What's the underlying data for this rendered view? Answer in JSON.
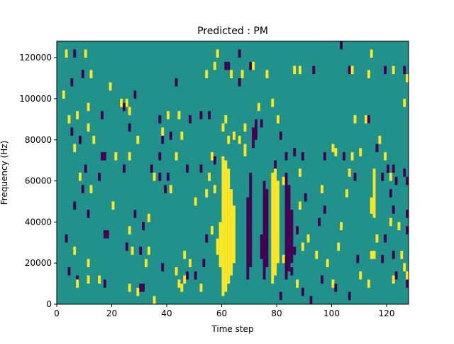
{
  "chart_data": {
    "type": "heatmap",
    "title": "Predicted : PM",
    "xlabel": "Time step",
    "ylabel": "Frequency (Hz)",
    "xlim": [
      0,
      128
    ],
    "ylim": [
      0,
      128000
    ],
    "x_ticks": [
      0,
      20,
      40,
      60,
      80,
      100,
      120
    ],
    "x_tick_labels": [
      "0",
      "20",
      "40",
      "60",
      "80",
      "100",
      "120"
    ],
    "y_ticks": [
      0,
      20000,
      40000,
      60000,
      80000,
      100000,
      120000
    ],
    "y_tick_labels": [
      "0",
      "20000",
      "40000",
      "60000",
      "80000",
      "100000",
      "120000"
    ],
    "grid": false,
    "colors": {
      "background": "#21918c",
      "high": "#fde725",
      "low": "#440154"
    },
    "segments": [
      {
        "x": 60,
        "y0": 4000,
        "y1": 72000,
        "v": 1
      },
      {
        "x": 61,
        "y0": 6000,
        "y1": 70000,
        "v": 1
      },
      {
        "x": 62,
        "y0": 10000,
        "y1": 66000,
        "v": 1
      },
      {
        "x": 63,
        "y0": 14000,
        "y1": 56000,
        "v": 1
      },
      {
        "x": 64,
        "y0": 20000,
        "y1": 48000,
        "v": 1
      },
      {
        "x": 59,
        "y0": 18000,
        "y1": 40000,
        "v": 1
      },
      {
        "x": 58,
        "y0": 24000,
        "y1": 32000,
        "v": 1
      },
      {
        "x": 69,
        "y0": 12000,
        "y1": 52000,
        "v": -1
      },
      {
        "x": 70,
        "y0": 18000,
        "y1": 64000,
        "v": -1
      },
      {
        "x": 74,
        "y0": 22000,
        "y1": 34000,
        "v": -1
      },
      {
        "x": 75,
        "y0": 12000,
        "y1": 60000,
        "v": -1
      },
      {
        "x": 76,
        "y0": 18000,
        "y1": 56000,
        "v": -1
      },
      {
        "x": 78,
        "y0": 10000,
        "y1": 64000,
        "v": 1
      },
      {
        "x": 79,
        "y0": 14000,
        "y1": 66000,
        "v": 1
      },
      {
        "x": 80,
        "y0": 20000,
        "y1": 60000,
        "v": 1
      },
      {
        "x": 83,
        "y0": 12000,
        "y1": 64000,
        "v": -1
      },
      {
        "x": 84,
        "y0": 16000,
        "y1": 58000,
        "v": -1
      },
      {
        "x": 85,
        "y0": 20000,
        "y1": 46000,
        "v": -1
      },
      {
        "x": 71,
        "y0": 76000,
        "y1": 86000,
        "v": -1
      },
      {
        "x": 72,
        "y0": 80000,
        "y1": 90000,
        "v": -1
      },
      {
        "x": 68,
        "y0": 72000,
        "y1": 78000,
        "v": 1
      },
      {
        "x": 114,
        "y0": 44000,
        "y1": 52000,
        "v": 1
      },
      {
        "x": 115,
        "y0": 42000,
        "y1": 66000,
        "v": 1
      }
    ],
    "cells": [
      {
        "x": 3,
        "y": 122000,
        "v": 1
      },
      {
        "x": 6,
        "y": 122000,
        "v": -1
      },
      {
        "x": 10,
        "y": 122000,
        "v": 1
      },
      {
        "x": 5,
        "y": 108000,
        "v": -1
      },
      {
        "x": 9,
        "y": 112000,
        "v": -1
      },
      {
        "x": 12,
        "y": 112000,
        "v": 1
      },
      {
        "x": 2,
        "y": 102000,
        "v": 1
      },
      {
        "x": 11,
        "y": 96000,
        "v": 1
      },
      {
        "x": 19,
        "y": 106000,
        "v": 1
      },
      {
        "x": 4,
        "y": 90000,
        "v": 1
      },
      {
        "x": 7,
        "y": 92000,
        "v": 1
      },
      {
        "x": 5,
        "y": 84000,
        "v": -1
      },
      {
        "x": 8,
        "y": 80000,
        "v": -1
      },
      {
        "x": 11,
        "y": 86000,
        "v": 1
      },
      {
        "x": 16,
        "y": 92000,
        "v": -1
      },
      {
        "x": 13,
        "y": 80000,
        "v": 1
      },
      {
        "x": 6,
        "y": 76000,
        "v": 1
      },
      {
        "x": 17,
        "y": 72000,
        "v": -1
      },
      {
        "x": 16,
        "y": 72000,
        "v": -1
      },
      {
        "x": 21,
        "y": 72000,
        "v": 1
      },
      {
        "x": 26,
        "y": 72000,
        "v": 1
      },
      {
        "x": 8,
        "y": 62000,
        "v": 1
      },
      {
        "x": 10,
        "y": 66000,
        "v": -1
      },
      {
        "x": 15,
        "y": 62000,
        "v": -1
      },
      {
        "x": 12,
        "y": 56000,
        "v": 1
      },
      {
        "x": 9,
        "y": 56000,
        "v": -1
      },
      {
        "x": 6,
        "y": 48000,
        "v": -1
      },
      {
        "x": 11,
        "y": 44000,
        "v": -1
      },
      {
        "x": 17,
        "y": 34000,
        "v": -1
      },
      {
        "x": 18,
        "y": 34000,
        "v": -1
      },
      {
        "x": 20,
        "y": 48000,
        "v": 1
      },
      {
        "x": 3,
        "y": 32000,
        "v": -1
      },
      {
        "x": 6,
        "y": 26000,
        "v": 1
      },
      {
        "x": 11,
        "y": 20000,
        "v": 1
      },
      {
        "x": 4,
        "y": 16000,
        "v": -1
      },
      {
        "x": 7,
        "y": 12000,
        "v": -1
      },
      {
        "x": 7,
        "y": 10000,
        "v": 1
      },
      {
        "x": 11,
        "y": 12000,
        "v": 1
      },
      {
        "x": 15,
        "y": 12000,
        "v": 1
      },
      {
        "x": 17,
        "y": 10000,
        "v": -1
      },
      {
        "x": 26,
        "y": 8000,
        "v": 1
      },
      {
        "x": 30,
        "y": 8000,
        "v": -1
      },
      {
        "x": 31,
        "y": 8000,
        "v": -1
      },
      {
        "x": 29,
        "y": 6000,
        "v": 1
      },
      {
        "x": 35,
        "y": 2000,
        "v": 1
      },
      {
        "x": 23,
        "y": 98000,
        "v": 1
      },
      {
        "x": 25,
        "y": 98000,
        "v": 1
      },
      {
        "x": 28,
        "y": 102000,
        "v": -1
      },
      {
        "x": 24,
        "y": 96000,
        "v": -1
      },
      {
        "x": 26,
        "y": 94000,
        "v": 1
      },
      {
        "x": 26,
        "y": 86000,
        "v": -1
      },
      {
        "x": 29,
        "y": 80000,
        "v": 1
      },
      {
        "x": 37,
        "y": 90000,
        "v": -1
      },
      {
        "x": 40,
        "y": 92000,
        "v": 1
      },
      {
        "x": 38,
        "y": 84000,
        "v": 1
      },
      {
        "x": 38,
        "y": 80000,
        "v": -1
      },
      {
        "x": 41,
        "y": 82000,
        "v": -1
      },
      {
        "x": 37,
        "y": 72000,
        "v": -1
      },
      {
        "x": 43,
        "y": 72000,
        "v": 1
      },
      {
        "x": 34,
        "y": 66000,
        "v": -1
      },
      {
        "x": 40,
        "y": 62000,
        "v": -1
      },
      {
        "x": 35,
        "y": 62000,
        "v": 1
      },
      {
        "x": 39,
        "y": 56000,
        "v": -1
      },
      {
        "x": 41,
        "y": 56000,
        "v": 1
      },
      {
        "x": 28,
        "y": 44000,
        "v": -1
      },
      {
        "x": 33,
        "y": 42000,
        "v": 1
      },
      {
        "x": 31,
        "y": 38000,
        "v": -1
      },
      {
        "x": 26,
        "y": 36000,
        "v": 1
      },
      {
        "x": 25,
        "y": 28000,
        "v": -1
      },
      {
        "x": 27,
        "y": 26000,
        "v": 1
      },
      {
        "x": 30,
        "y": 26000,
        "v": -1
      },
      {
        "x": 33,
        "y": 26000,
        "v": 1
      },
      {
        "x": 32,
        "y": 20000,
        "v": 1
      },
      {
        "x": 38,
        "y": 18000,
        "v": -1
      },
      {
        "x": 43,
        "y": 16000,
        "v": 1
      },
      {
        "x": 44,
        "y": 10000,
        "v": 1
      },
      {
        "x": 45,
        "y": 8000,
        "v": 1
      },
      {
        "x": 46,
        "y": 12000,
        "v": 1
      },
      {
        "x": 47,
        "y": 14000,
        "v": -1
      },
      {
        "x": 46,
        "y": 24000,
        "v": 1
      },
      {
        "x": 48,
        "y": 20000,
        "v": 1
      },
      {
        "x": 50,
        "y": 14000,
        "v": -1
      },
      {
        "x": 52,
        "y": 8000,
        "v": 1
      },
      {
        "x": 53,
        "y": 20000,
        "v": -1
      },
      {
        "x": 50,
        "y": 50000,
        "v": 1
      },
      {
        "x": 52,
        "y": 66000,
        "v": -1
      },
      {
        "x": 54,
        "y": 54000,
        "v": 1
      },
      {
        "x": 55,
        "y": 62000,
        "v": 1
      },
      {
        "x": 56,
        "y": 72000,
        "v": 1
      },
      {
        "x": 57,
        "y": 70000,
        "v": -1
      },
      {
        "x": 57,
        "y": 56000,
        "v": 1
      },
      {
        "x": 56,
        "y": 36000,
        "v": 1
      },
      {
        "x": 54,
        "y": 32000,
        "v": -1
      },
      {
        "x": 47,
        "y": 66000,
        "v": -1
      },
      {
        "x": 45,
        "y": 82000,
        "v": 1
      },
      {
        "x": 48,
        "y": 90000,
        "v": -1
      },
      {
        "x": 44,
        "y": 92000,
        "v": 1
      },
      {
        "x": 43,
        "y": 108000,
        "v": -1
      },
      {
        "x": 52,
        "y": 92000,
        "v": -1
      },
      {
        "x": 55,
        "y": 92000,
        "v": -1
      },
      {
        "x": 54,
        "y": 112000,
        "v": 1
      },
      {
        "x": 57,
        "y": 116000,
        "v": 1
      },
      {
        "x": 58,
        "y": 122000,
        "v": 1
      },
      {
        "x": 61,
        "y": 116000,
        "v": -1
      },
      {
        "x": 62,
        "y": 116000,
        "v": -1
      },
      {
        "x": 66,
        "y": 122000,
        "v": -1
      },
      {
        "x": 67,
        "y": 112000,
        "v": 1
      },
      {
        "x": 70,
        "y": 116000,
        "v": -1
      },
      {
        "x": 71,
        "y": 116000,
        "v": 1
      },
      {
        "x": 63,
        "y": 112000,
        "v": 1
      },
      {
        "x": 66,
        "y": 108000,
        "v": -1
      },
      {
        "x": 61,
        "y": 90000,
        "v": 1
      },
      {
        "x": 60,
        "y": 86000,
        "v": 1
      },
      {
        "x": 64,
        "y": 82000,
        "v": 1
      },
      {
        "x": 62,
        "y": 80000,
        "v": 1
      },
      {
        "x": 66,
        "y": 80000,
        "v": 1
      },
      {
        "x": 68,
        "y": 86000,
        "v": 1
      },
      {
        "x": 73,
        "y": 96000,
        "v": 1
      },
      {
        "x": 76,
        "y": 112000,
        "v": 1
      },
      {
        "x": 74,
        "y": 88000,
        "v": -1
      },
      {
        "x": 78,
        "y": 98000,
        "v": 1
      },
      {
        "x": 80,
        "y": 90000,
        "v": 1
      },
      {
        "x": 81,
        "y": 82000,
        "v": -1
      },
      {
        "x": 79,
        "y": 68000,
        "v": -1
      },
      {
        "x": 83,
        "y": 72000,
        "v": -1
      },
      {
        "x": 86,
        "y": 74000,
        "v": -1
      },
      {
        "x": 82,
        "y": 60000,
        "v": 1
      },
      {
        "x": 88,
        "y": 64000,
        "v": 1
      },
      {
        "x": 89,
        "y": 72000,
        "v": -1
      },
      {
        "x": 90,
        "y": 52000,
        "v": -1
      },
      {
        "x": 88,
        "y": 48000,
        "v": 1
      },
      {
        "x": 87,
        "y": 36000,
        "v": -1
      },
      {
        "x": 89,
        "y": 28000,
        "v": 1
      },
      {
        "x": 91,
        "y": 32000,
        "v": 1
      },
      {
        "x": 86,
        "y": 26000,
        "v": -1
      },
      {
        "x": 85,
        "y": 16000,
        "v": -1
      },
      {
        "x": 87,
        "y": 10000,
        "v": 1
      },
      {
        "x": 89,
        "y": 6000,
        "v": -1
      },
      {
        "x": 92,
        "y": 2000,
        "v": -1
      },
      {
        "x": 81,
        "y": 4000,
        "v": -1
      },
      {
        "x": 82,
        "y": 22000,
        "v": 1
      },
      {
        "x": 86,
        "y": 114000,
        "v": 1
      },
      {
        "x": 88,
        "y": 114000,
        "v": 1
      },
      {
        "x": 93,
        "y": 114000,
        "v": -1
      },
      {
        "x": 97,
        "y": 72000,
        "v": -1
      },
      {
        "x": 100,
        "y": 76000,
        "v": 1
      },
      {
        "x": 101,
        "y": 74000,
        "v": 1
      },
      {
        "x": 96,
        "y": 56000,
        "v": 1
      },
      {
        "x": 97,
        "y": 46000,
        "v": -1
      },
      {
        "x": 95,
        "y": 40000,
        "v": -1
      },
      {
        "x": 94,
        "y": 24000,
        "v": 1
      },
      {
        "x": 96,
        "y": 12000,
        "v": -1
      },
      {
        "x": 98,
        "y": 20000,
        "v": 1
      },
      {
        "x": 100,
        "y": 10000,
        "v": 1
      },
      {
        "x": 102,
        "y": 28000,
        "v": 1
      },
      {
        "x": 103,
        "y": 38000,
        "v": 1
      },
      {
        "x": 101,
        "y": 8000,
        "v": -1
      },
      {
        "x": 105,
        "y": 54000,
        "v": 1
      },
      {
        "x": 106,
        "y": 64000,
        "v": 1
      },
      {
        "x": 104,
        "y": 72000,
        "v": -1
      },
      {
        "x": 107,
        "y": 72000,
        "v": 1
      },
      {
        "x": 110,
        "y": 74000,
        "v": 1
      },
      {
        "x": 108,
        "y": 62000,
        "v": -1
      },
      {
        "x": 109,
        "y": 22000,
        "v": -1
      },
      {
        "x": 110,
        "y": 14000,
        "v": 1
      },
      {
        "x": 106,
        "y": 4000,
        "v": -1
      },
      {
        "x": 113,
        "y": 10000,
        "v": 1
      },
      {
        "x": 108,
        "y": 90000,
        "v": 1
      },
      {
        "x": 112,
        "y": 90000,
        "v": 1
      },
      {
        "x": 113,
        "y": 90000,
        "v": -1
      },
      {
        "x": 117,
        "y": 80000,
        "v": 1
      },
      {
        "x": 116,
        "y": 76000,
        "v": -1
      },
      {
        "x": 119,
        "y": 72000,
        "v": 1
      },
      {
        "x": 120,
        "y": 66000,
        "v": -1
      },
      {
        "x": 122,
        "y": 66000,
        "v": -1
      },
      {
        "x": 121,
        "y": 62000,
        "v": 1
      },
      {
        "x": 118,
        "y": 62000,
        "v": -1
      },
      {
        "x": 123,
        "y": 60000,
        "v": -1
      },
      {
        "x": 121,
        "y": 54000,
        "v": -1
      },
      {
        "x": 127,
        "y": 60000,
        "v": -1
      },
      {
        "x": 126,
        "y": 64000,
        "v": -1
      },
      {
        "x": 122,
        "y": 46000,
        "v": -1
      },
      {
        "x": 121,
        "y": 40000,
        "v": 1
      },
      {
        "x": 116,
        "y": 32000,
        "v": 1
      },
      {
        "x": 119,
        "y": 32000,
        "v": -1
      },
      {
        "x": 124,
        "y": 38000,
        "v": 1
      },
      {
        "x": 127,
        "y": 36000,
        "v": -1
      },
      {
        "x": 127,
        "y": 44000,
        "v": -1
      },
      {
        "x": 122,
        "y": 24000,
        "v": -1
      },
      {
        "x": 115,
        "y": 24000,
        "v": 1
      },
      {
        "x": 114,
        "y": 24000,
        "v": 1
      },
      {
        "x": 118,
        "y": 22000,
        "v": -1
      },
      {
        "x": 125,
        "y": 24000,
        "v": 1
      },
      {
        "x": 126,
        "y": 18000,
        "v": 1
      },
      {
        "x": 123,
        "y": 14000,
        "v": -1
      },
      {
        "x": 122,
        "y": 12000,
        "v": 1
      },
      {
        "x": 127,
        "y": 10000,
        "v": -1
      },
      {
        "x": 127,
        "y": 14000,
        "v": 1
      },
      {
        "x": 114,
        "y": 122000,
        "v": 1
      },
      {
        "x": 119,
        "y": 114000,
        "v": -1
      },
      {
        "x": 122,
        "y": 114000,
        "v": 1
      },
      {
        "x": 126,
        "y": 114000,
        "v": -1
      },
      {
        "x": 127,
        "y": 110000,
        "v": 1
      },
      {
        "x": 126,
        "y": 98000,
        "v": 1
      },
      {
        "x": 113,
        "y": 112000,
        "v": 1
      },
      {
        "x": 106,
        "y": 114000,
        "v": -1
      },
      {
        "x": 103,
        "y": 126000,
        "v": -1
      },
      {
        "x": 107,
        "y": 114000,
        "v": 1
      },
      {
        "x": 24,
        "y": 66000,
        "v": -1
      },
      {
        "x": 37,
        "y": 62000,
        "v": -1
      }
    ]
  }
}
